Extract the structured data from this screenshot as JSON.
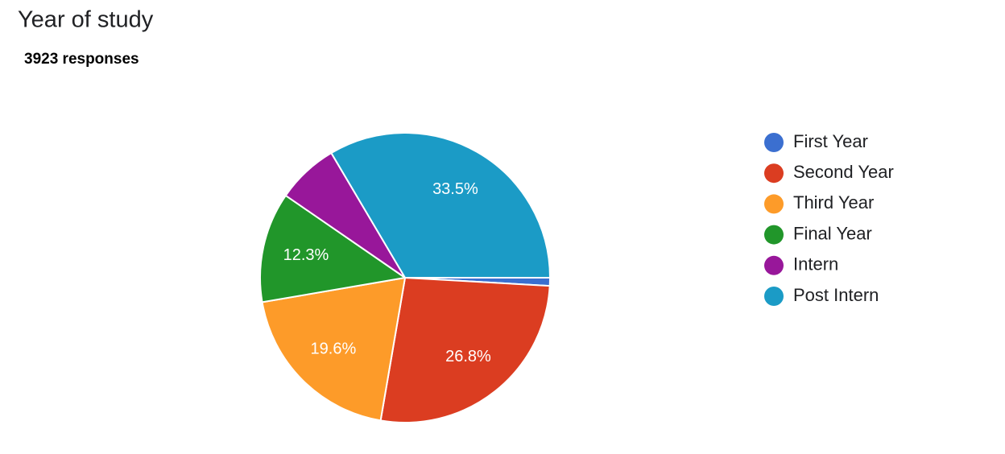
{
  "chart_data": {
    "type": "pie",
    "title": "Year of study",
    "subtitle": "3923 responses",
    "categories": [
      "First Year",
      "Second Year",
      "Third Year",
      "Final Year",
      "Intern",
      "Post Intern"
    ],
    "values": [
      0.9,
      26.8,
      19.6,
      12.3,
      6.9,
      33.5
    ],
    "value_labels": [
      null,
      "26.8%",
      "19.6%",
      "12.3%",
      null,
      "33.5%"
    ],
    "colors": [
      "#3b6fd0",
      "#db3d21",
      "#fd9b29",
      "#21962a",
      "#98179a",
      "#1b9bc6"
    ],
    "legend": "right"
  }
}
